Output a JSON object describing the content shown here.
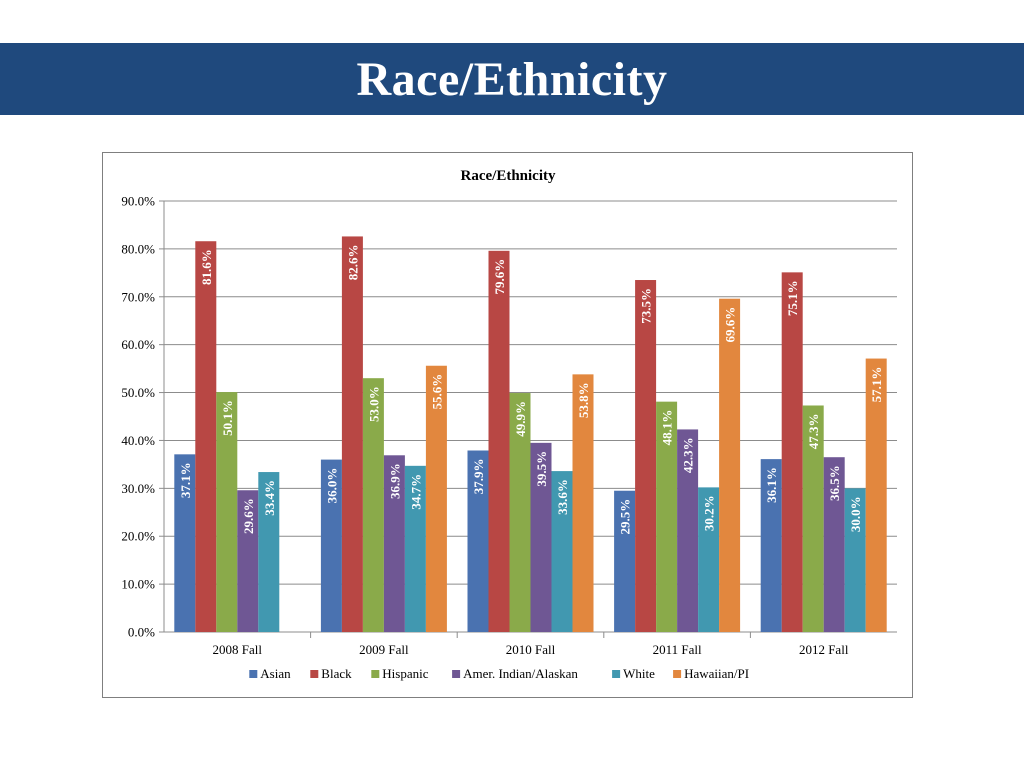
{
  "slide": {
    "title": "Race/Ethnicity"
  },
  "chart_data": {
    "type": "bar",
    "title": "Race/Ethnicity",
    "categories": [
      "2008 Fall",
      "2009 Fall",
      "2010 Fall",
      "2011 Fall",
      "2012 Fall"
    ],
    "series": [
      {
        "name": "Asian",
        "color": "#4a72b0",
        "values": [
          37.1,
          36.0,
          37.9,
          29.5,
          36.1
        ],
        "labels": [
          "37.1%",
          "36.0%",
          "37.9%",
          "29.5%",
          "36.1%"
        ]
      },
      {
        "name": "Black",
        "color": "#b84744",
        "values": [
          81.6,
          82.6,
          79.6,
          73.5,
          75.1
        ],
        "labels": [
          "81.6%",
          "82.6%",
          "79.6%",
          "73.5%",
          "75.1%"
        ]
      },
      {
        "name": "Hispanic",
        "color": "#8aaa4a",
        "values": [
          50.1,
          53.0,
          49.9,
          48.1,
          47.3
        ],
        "labels": [
          "50.1%",
          "53.0%",
          "49.9%",
          "48.1%",
          "47.3%"
        ]
      },
      {
        "name": "Amer. Indian/Alaskan",
        "color": "#6f5794",
        "values": [
          29.6,
          36.9,
          39.5,
          42.3,
          36.5
        ],
        "labels": [
          "29.6%",
          "36.9%",
          "39.5%",
          "42.3%",
          "36.5%"
        ]
      },
      {
        "name": "White",
        "color": "#4198b0",
        "values": [
          33.4,
          34.7,
          33.6,
          30.2,
          30.0
        ],
        "labels": [
          "33.4%",
          "34.7%",
          "33.6%",
          "30.2%",
          "30.0%"
        ]
      },
      {
        "name": "Hawaiian/PI",
        "color": "#e2873e",
        "values": [
          null,
          55.6,
          53.8,
          69.6,
          57.1
        ],
        "labels": [
          "",
          "55.6%",
          "53.8%",
          "69.6%",
          "57.1%"
        ]
      }
    ],
    "yticks": [
      "0.0%",
      "10.0%",
      "20.0%",
      "30.0%",
      "40.0%",
      "50.0%",
      "60.0%",
      "70.0%",
      "80.0%",
      "90.0%"
    ],
    "ylim": [
      0,
      90
    ],
    "grid": true,
    "legend_position": "bottom"
  }
}
